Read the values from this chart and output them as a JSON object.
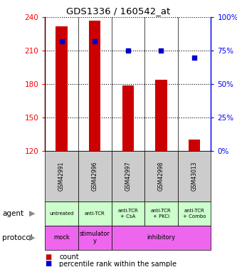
{
  "title": "GDS1336 / 160542_at",
  "samples": [
    "GSM42991",
    "GSM42996",
    "GSM42997",
    "GSM42998",
    "GSM43013"
  ],
  "count_values": [
    232,
    237,
    179,
    184,
    130
  ],
  "count_base": 120,
  "percentile_values": [
    82,
    82,
    75,
    75,
    70
  ],
  "ylim_left": [
    120,
    240
  ],
  "ylim_right": [
    0,
    100
  ],
  "left_ticks": [
    120,
    150,
    180,
    210,
    240
  ],
  "right_ticks": [
    0,
    25,
    50,
    75,
    100
  ],
  "bar_color": "#cc0000",
  "dot_color": "#0000cc",
  "agent_labels": [
    "untreated",
    "anti-TCR",
    "anti-TCR\n+ CsA",
    "anti-TCR\n+ PKCi",
    "anti-TCR\n+ Combo"
  ],
  "agent_color": "#ccffcc",
  "protocol_spans": [
    [
      0,
      1,
      "mock"
    ],
    [
      1,
      2,
      "stimulator\ny"
    ],
    [
      2,
      5,
      "inhibitory"
    ]
  ],
  "protocol_color": "#ee66ee",
  "sample_bg_color": "#cccccc",
  "legend_count_color": "#cc0000",
  "legend_pct_color": "#0000cc",
  "bar_width": 0.35
}
